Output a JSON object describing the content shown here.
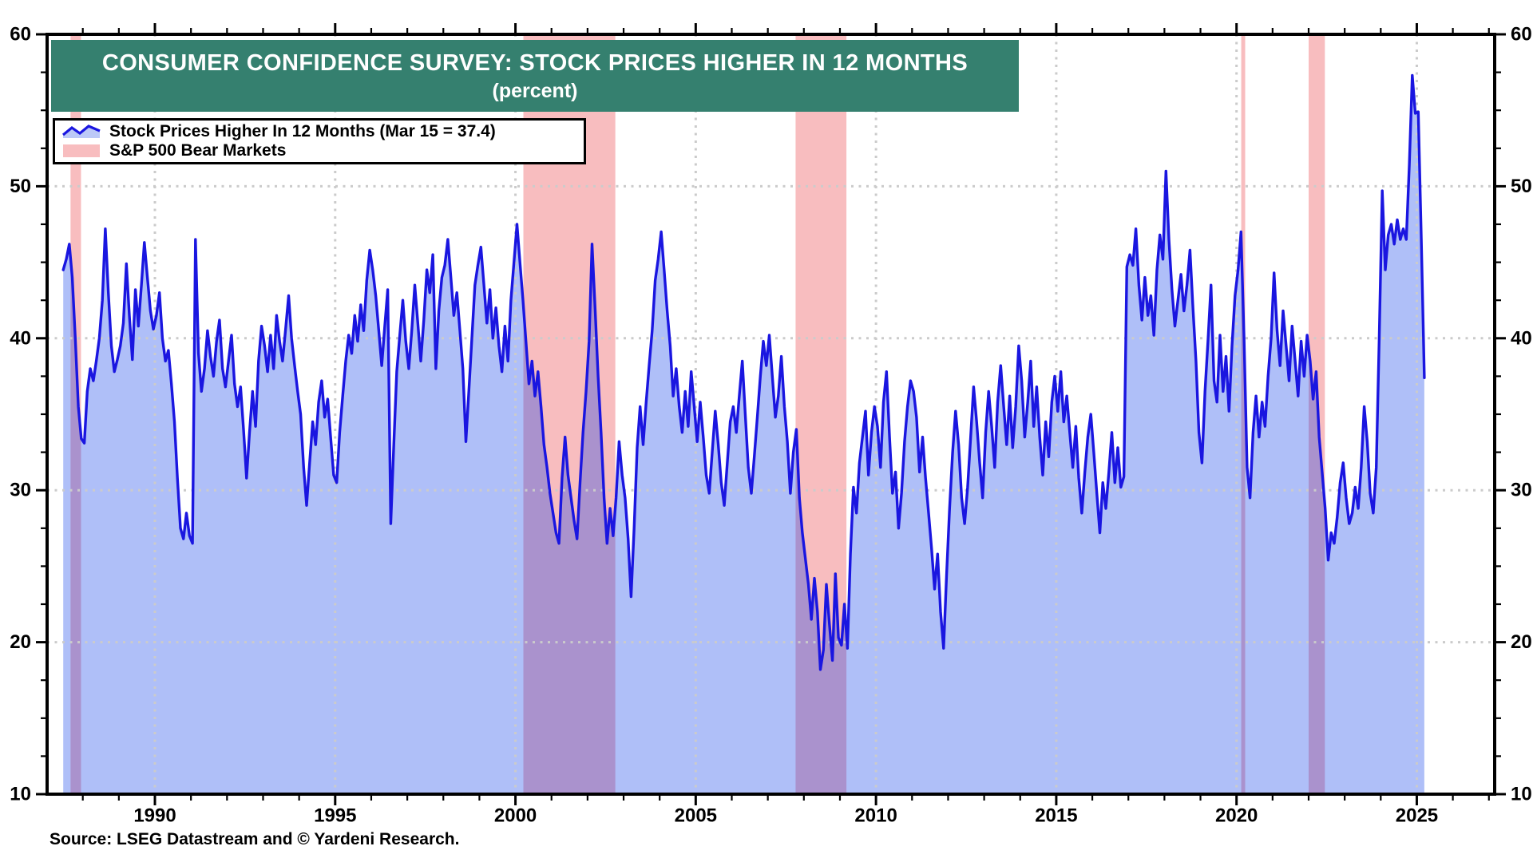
{
  "title": {
    "line1": "CONSUMER CONFIDENCE SURVEY: STOCK PRICES HIGHER IN 12 MONTHS",
    "line2": "(percent)"
  },
  "legend": {
    "items": [
      {
        "label": "Stock Prices Higher In 12 Months (Mar 15 = 37.4)",
        "marker": "line-area"
      },
      {
        "label": "S&P 500 Bear Markets",
        "marker": "band"
      }
    ]
  },
  "source_note": "Source: LSEG Datastream and © Yardeni Research.",
  "colors": {
    "banner": "#35806F",
    "line": "#1A16E0",
    "area": "rgba(13,60,235,0.33)",
    "legend_area": "#BCC9F7",
    "band": "#F8BDBF",
    "grid": "#CBCBCB",
    "frame": "#000000"
  },
  "chart_data": {
    "type": "area",
    "title": "CONSUMER CONFIDENCE SURVEY: STOCK PRICES HIGHER IN 12 MONTHS",
    "subtitle": "(percent)",
    "ylabel": "percent",
    "grid": "dotted",
    "legend_position": "top-left",
    "x_domain": [
      1987.01,
      2027.16
    ],
    "y_domain": [
      10,
      60
    ],
    "x_major_ticks": [
      1990,
      1995,
      2000,
      2005,
      2010,
      2015,
      2020,
      2025
    ],
    "x_minor_tick_step_years": 1,
    "y_major_ticks": [
      10,
      20,
      30,
      40,
      50,
      60
    ],
    "y_minor_tick_step": 2.5,
    "h_gridlines": [
      20,
      30,
      40,
      50
    ],
    "bear_market_bands": [
      [
        1987.66,
        1987.95
      ],
      [
        2000.22,
        2002.77
      ],
      [
        2007.77,
        2009.18
      ],
      [
        2020.13,
        2020.24
      ],
      [
        2022.0,
        2022.45
      ]
    ],
    "series": {
      "name": "Stock Prices Higher In 12 Months",
      "last_point_label": "Mar 15 = 37.4",
      "frequency": "monthly",
      "start": {
        "year": 1987,
        "month": 6
      },
      "values": [
        44.5,
        45.2,
        46.2,
        44.0,
        40.0,
        35.5,
        33.4,
        33.1,
        36.5,
        38.0,
        37.2,
        38.5,
        40.0,
        42.5,
        47.2,
        43.0,
        39.5,
        37.8,
        38.6,
        39.5,
        41.0,
        44.9,
        41.5,
        38.6,
        43.2,
        40.8,
        43.5,
        46.3,
        44.0,
        41.8,
        40.6,
        41.5,
        43.0,
        40.0,
        38.5,
        39.2,
        37.0,
        34.5,
        30.8,
        27.5,
        26.8,
        28.5,
        27.0,
        26.5,
        46.5,
        39.0,
        36.5,
        38.0,
        40.5,
        38.8,
        37.5,
        39.8,
        41.2,
        38.0,
        36.8,
        38.5,
        40.2,
        37.0,
        35.5,
        36.8,
        34.0,
        30.8,
        33.8,
        36.5,
        34.2,
        38.5,
        40.8,
        39.5,
        37.8,
        40.2,
        38.0,
        41.5,
        39.8,
        38.5,
        40.6,
        42.8,
        40.0,
        38.2,
        36.5,
        35.0,
        31.5,
        29.0,
        31.8,
        34.5,
        33.0,
        35.8,
        37.2,
        34.8,
        36.0,
        33.5,
        31.0,
        30.5,
        33.8,
        36.2,
        38.5,
        40.2,
        39.0,
        41.5,
        39.8,
        42.2,
        40.5,
        43.8,
        45.8,
        44.5,
        42.8,
        40.5,
        38.2,
        40.8,
        43.2,
        27.8,
        33.0,
        37.8,
        40.2,
        42.5,
        39.8,
        38.0,
        40.5,
        43.5,
        41.0,
        38.5,
        41.2,
        44.5,
        43.0,
        45.5,
        38.0,
        41.8,
        44.0,
        44.8,
        46.5,
        44.0,
        41.5,
        43.0,
        40.5,
        38.0,
        33.2,
        36.5,
        40.0,
        43.5,
        44.8,
        46.0,
        43.5,
        41.0,
        43.2,
        40.0,
        42.0,
        39.5,
        37.8,
        40.8,
        38.5,
        42.5,
        45.0,
        47.5,
        45.0,
        42.5,
        39.8,
        37.0,
        38.5,
        36.2,
        37.8,
        35.5,
        33.0,
        31.5,
        29.8,
        28.5,
        27.2,
        26.5,
        30.8,
        33.5,
        31.0,
        29.5,
        28.0,
        26.8,
        30.5,
        33.8,
        36.5,
        39.8,
        46.2,
        42.0,
        37.5,
        33.8,
        29.5,
        26.5,
        28.8,
        27.0,
        29.5,
        33.2,
        31.0,
        29.5,
        26.8,
        23.0,
        27.5,
        32.8,
        35.5,
        33.0,
        35.8,
        38.2,
        40.5,
        43.8,
        45.2,
        47.0,
        44.5,
        41.8,
        39.5,
        36.2,
        38.0,
        35.5,
        33.8,
        36.5,
        34.2,
        37.8,
        35.5,
        33.2,
        35.8,
        33.5,
        31.0,
        29.8,
        32.5,
        35.2,
        33.0,
        30.5,
        29.0,
        31.8,
        34.5,
        35.5,
        33.8,
        36.2,
        38.5,
        35.0,
        31.5,
        29.8,
        32.2,
        34.8,
        37.5,
        39.8,
        38.2,
        40.2,
        37.5,
        34.8,
        36.2,
        38.8,
        35.5,
        33.2,
        29.8,
        32.5,
        34.0,
        29.5,
        27.2,
        25.5,
        23.8,
        21.5,
        24.2,
        22.0,
        18.2,
        19.5,
        23.8,
        21.2,
        18.8,
        24.5,
        20.3,
        19.8,
        22.5,
        19.6,
        25.8,
        30.2,
        28.5,
        31.8,
        33.5,
        35.2,
        31.0,
        33.8,
        35.5,
        34.2,
        31.5,
        35.8,
        37.8,
        33.5,
        29.8,
        31.2,
        27.5,
        29.8,
        33.2,
        35.5,
        37.2,
        36.5,
        34.8,
        31.2,
        33.5,
        30.8,
        28.5,
        26.2,
        23.5,
        25.8,
        22.0,
        19.6,
        24.5,
        28.8,
        32.5,
        35.2,
        33.0,
        29.5,
        27.8,
        30.2,
        33.5,
        36.8,
        34.5,
        31.8,
        29.5,
        33.8,
        36.5,
        34.2,
        31.5,
        35.8,
        38.2,
        35.5,
        33.0,
        36.2,
        32.8,
        35.5,
        39.5,
        37.2,
        33.5,
        35.8,
        38.5,
        34.2,
        36.8,
        33.5,
        31.0,
        34.5,
        32.2,
        35.8,
        37.5,
        35.2,
        37.8,
        34.5,
        36.2,
        33.8,
        31.5,
        34.2,
        30.8,
        28.5,
        31.2,
        33.5,
        35.0,
        32.5,
        29.8,
        27.2,
        30.5,
        28.8,
        31.2,
        33.8,
        30.5,
        32.8,
        30.2,
        30.9,
        44.7,
        45.5,
        44.8,
        47.2,
        43.5,
        41.2,
        44.0,
        41.5,
        42.8,
        40.2,
        44.5,
        46.8,
        45.2,
        51.0,
        46.5,
        43.2,
        40.8,
        42.5,
        44.2,
        41.8,
        43.5,
        45.8,
        42.0,
        38.5,
        33.8,
        31.8,
        36.5,
        39.8,
        43.5,
        37.2,
        35.8,
        40.2,
        36.5,
        38.8,
        35.2,
        39.5,
        42.8,
        44.5,
        47.0,
        40.0,
        31.5,
        29.5,
        33.8,
        36.2,
        33.5,
        35.8,
        34.2,
        37.5,
        40.0,
        44.3,
        40.5,
        38.2,
        41.8,
        39.5,
        37.2,
        40.8,
        38.5,
        36.2,
        39.8,
        37.5,
        40.2,
        38.5,
        36.0,
        37.8,
        33.5,
        31.2,
        28.8,
        25.4,
        27.2,
        26.5,
        28.2,
        30.5,
        31.8,
        29.5,
        27.8,
        28.5,
        30.2,
        28.8,
        31.5,
        35.5,
        33.2,
        29.8,
        28.5,
        31.5,
        40.0,
        49.7,
        44.5,
        46.8,
        47.5,
        46.2,
        47.8,
        46.5,
        47.2,
        46.5,
        51.4,
        57.3,
        54.8,
        54.9,
        46.5,
        37.4
      ]
    }
  }
}
